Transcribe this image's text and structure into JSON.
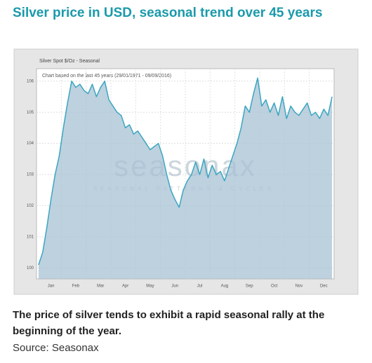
{
  "title": "Silver price in USD, seasonal trend over 45 years",
  "chart_data": {
    "type": "line",
    "title": "Silver Spot $/Oz - Seasonal",
    "subtitle": "Chart based on the last 45 years (29/01/1971 - 09/09/2016)",
    "watermark": "seasonax",
    "watermark_subtitle": "SEASONAL PATTERNS & CYCLES",
    "categories": [
      null,
      null,
      null,
      "Jan",
      null,
      null,
      null,
      null,
      null,
      "Feb",
      null,
      null,
      null,
      null,
      null,
      "Mar",
      null,
      null,
      null,
      null,
      null,
      "Apr",
      null,
      null,
      null,
      null,
      null,
      "May",
      null,
      null,
      null,
      null,
      null,
      "Jun",
      null,
      null,
      null,
      null,
      null,
      "Jul",
      null,
      null,
      null,
      null,
      null,
      "Aug",
      null,
      null,
      null,
      null,
      null,
      "Sep",
      null,
      null,
      null,
      null,
      null,
      "Oct",
      null,
      null,
      null,
      null,
      null,
      "Nov",
      null,
      null,
      null,
      null,
      null,
      "Dec",
      null,
      null
    ],
    "series": [
      {
        "name": "Silver Spot",
        "color": "#3aa6c0",
        "values": [
          100.1,
          100.5,
          101.3,
          102.2,
          103.0,
          103.6,
          104.5,
          105.3,
          106.0,
          105.8,
          105.9,
          105.7,
          105.6,
          105.9,
          105.5,
          105.8,
          106.0,
          105.4,
          105.2,
          105.0,
          104.9,
          104.5,
          104.6,
          104.3,
          104.4,
          104.2,
          104.0,
          103.8,
          103.9,
          104.0,
          103.6,
          103.0,
          102.5,
          102.2,
          101.95,
          102.5,
          102.8,
          103.0,
          103.4,
          103.0,
          103.5,
          102.9,
          103.3,
          103.0,
          103.1,
          102.8,
          103.2,
          103.6,
          104.0,
          104.5,
          105.2,
          105.0,
          105.6,
          106.1,
          105.2,
          105.4,
          105.0,
          105.3,
          104.9,
          105.5,
          104.8,
          105.2,
          105.0,
          104.9,
          105.1,
          105.3,
          104.9,
          105.0,
          104.8,
          105.1,
          104.9,
          105.5
        ]
      }
    ],
    "ylim": [
      99.65,
      106.4
    ],
    "yticks": [
      100,
      101,
      102,
      103,
      104,
      105,
      106
    ],
    "grid": true,
    "fill_color": "#a8c1d4"
  },
  "caption": "The price of silver tends to exhibit a rapid seasonal rally at the beginning of the year.",
  "source": "Source: Seasonax"
}
